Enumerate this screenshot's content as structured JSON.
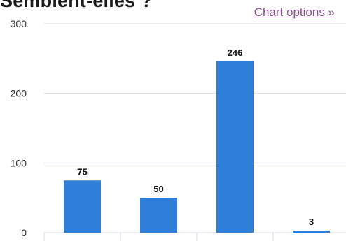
{
  "header": {
    "title": "Semblent-elles ?",
    "options_link": "Chart options »"
  },
  "colors": {
    "bar": "#2f7ed8",
    "grid": "#d6dde5",
    "link": "#8a4d8f"
  },
  "chart_data": {
    "type": "bar",
    "title": "Semblent-elles ?",
    "xlabel": "",
    "ylabel": "",
    "categories": [
      "",
      "",
      "",
      ""
    ],
    "values": [
      75,
      50,
      246,
      3
    ],
    "data_labels": [
      "75",
      "50",
      "246",
      "3"
    ],
    "ylim": [
      0,
      300
    ],
    "yticks": [
      0,
      100,
      200,
      300
    ],
    "grid": true,
    "legend": "none"
  }
}
